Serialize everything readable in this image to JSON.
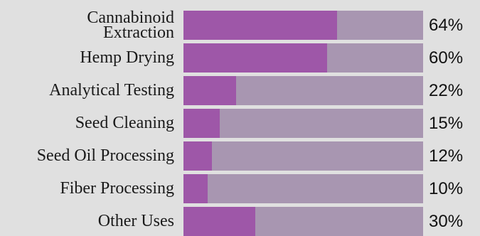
{
  "chart_data": {
    "type": "bar",
    "orientation": "horizontal",
    "categories": [
      [
        "Cannabinoid",
        "Extraction"
      ],
      [
        "Hemp Drying"
      ],
      [
        "Analytical Testing"
      ],
      [
        "Seed Cleaning"
      ],
      [
        "Seed Oil Processing"
      ],
      [
        "Fiber Processing"
      ],
      [
        "Other Uses"
      ]
    ],
    "values": [
      64,
      60,
      22,
      15,
      12,
      10,
      30
    ],
    "value_labels": [
      "64%",
      "60%",
      "22%",
      "15%",
      "12%",
      "10%",
      "30%"
    ],
    "xlim": [
      0,
      100
    ],
    "title": "",
    "xlabel": "",
    "ylabel": "",
    "colors": {
      "fill": "#9e57a8",
      "track": "#a896b1",
      "background": "#e0e0e0"
    }
  }
}
